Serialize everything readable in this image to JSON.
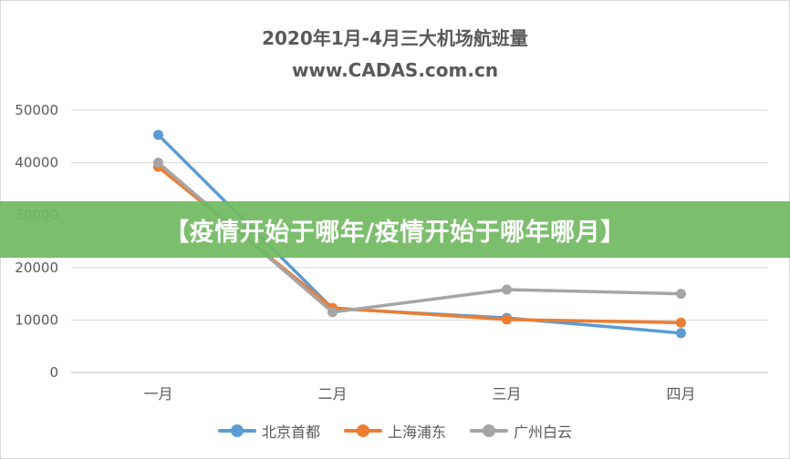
{
  "chart_data": {
    "type": "line",
    "title": "2020年1月-4月三大机场航班量",
    "subtitle": "www.CADAS.com.cn",
    "categories": [
      "一月",
      "二月",
      "三月",
      "四月"
    ],
    "ylim": [
      0,
      50000
    ],
    "yticks": [
      0,
      10000,
      20000,
      30000,
      40000,
      50000
    ],
    "grid": true,
    "legend_position": "bottom",
    "series": [
      {
        "name": "北京首都",
        "color": "#5b9bd5",
        "values": [
          45300,
          12200,
          10400,
          7500
        ]
      },
      {
        "name": "上海浦东",
        "color": "#ed7d31",
        "values": [
          39200,
          12300,
          10100,
          9500
        ]
      },
      {
        "name": "广州白云",
        "color": "#a5a5a5",
        "values": [
          40000,
          11500,
          15800,
          15000
        ]
      }
    ]
  },
  "overlay": {
    "banner_text": "【疫情开始于哪年/疫情开始于哪年哪月】"
  }
}
